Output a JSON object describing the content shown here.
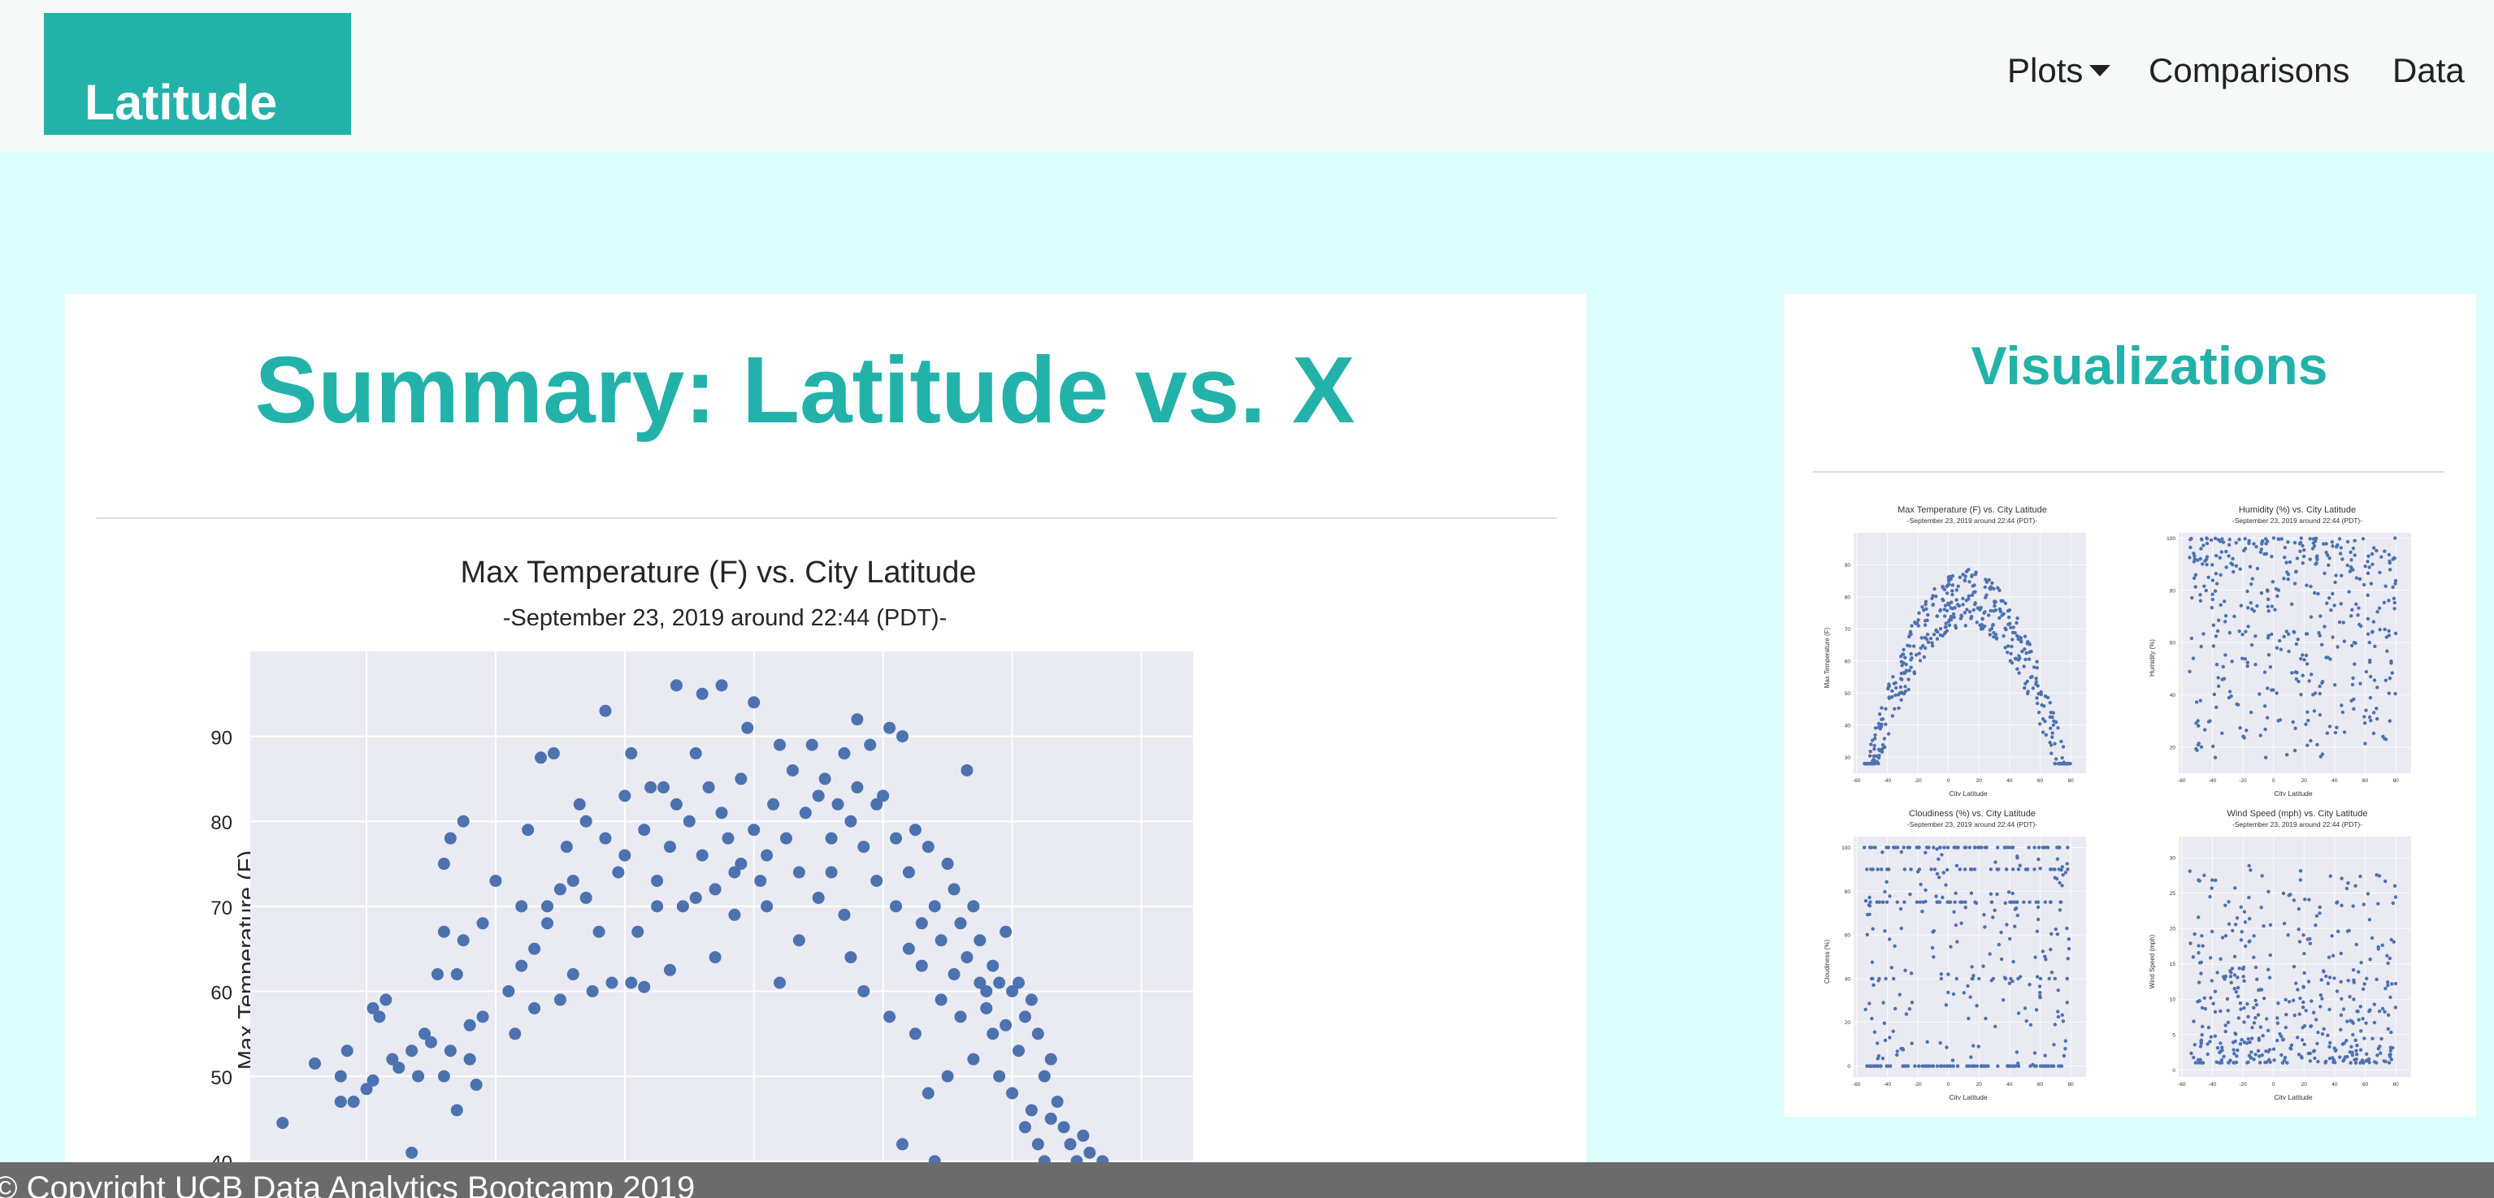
{
  "navbar": {
    "brand": "Latitude",
    "items": [
      {
        "label": "Plots",
        "has_dropdown": true
      },
      {
        "label": "Comparisons"
      },
      {
        "label": "Data"
      }
    ]
  },
  "main": {
    "title": "Summary: Latitude vs. X"
  },
  "sidebar": {
    "title": "Visualizations",
    "thumbnails": [
      {
        "title": "Max Temperature (F) vs. City Latitude",
        "subtitle": "-September 23, 2019 around 22:44 (PDT)-",
        "xlabel": "City Latitude",
        "ylabel": "Max Temperature (F)",
        "yticks": [
          30,
          40,
          50,
          60,
          70,
          80,
          90
        ],
        "xticks": [
          -60,
          -40,
          -20,
          0,
          20,
          40,
          60,
          80
        ]
      },
      {
        "title": "Humidity (%) vs. City Latitude",
        "subtitle": "-September 23, 2019 around 22:44 (PDT)-",
        "xlabel": "City Latitude",
        "ylabel": "Humidity (%)",
        "yticks": [
          20,
          40,
          60,
          80,
          100
        ],
        "xticks": [
          -60,
          -40,
          -20,
          0,
          20,
          40,
          60,
          80
        ]
      },
      {
        "title": "Cloudiness (%) vs. City Latitude",
        "subtitle": "-September 23, 2019 around 22:44 (PDT)-",
        "xlabel": "City Latitude",
        "ylabel": "Cloudiness (%)",
        "yticks": [
          0,
          20,
          40,
          60,
          80,
          100
        ],
        "xticks": [
          -60,
          -40,
          -20,
          0,
          20,
          40,
          60,
          80
        ]
      },
      {
        "title": "Wind Speed (mph) vs. City Latitude",
        "subtitle": "-September 23, 2019 around 22:44 (PDT)-",
        "xlabel": "City Latitude",
        "ylabel": "Wind Speed (mph)",
        "yticks": [
          0,
          5,
          10,
          15,
          20,
          25,
          30
        ],
        "xticks": [
          -60,
          -40,
          -20,
          0,
          20,
          40,
          60,
          80
        ]
      }
    ]
  },
  "footer": {
    "text": "© Copyright UCB Data Analytics Bootcamp 2019"
  },
  "colors": {
    "accent": "#22b2aa",
    "page_background": "#dcfefd",
    "point": "#4c72b0",
    "plot_background": "#eaeaf2",
    "footer": "#6b6b6b"
  },
  "chart_data": [
    {
      "type": "scatter",
      "title": "Max Temperature (F) vs. City Latitude",
      "subtitle": "-September 23, 2019 around 22:44 (PDT)-",
      "xlabel": "City Latitude",
      "ylabel": "Max Temperature (F)",
      "xlim": [
        -58,
        88
      ],
      "ylim": [
        35,
        100
      ],
      "visible_ylim": [
        35,
        100
      ],
      "yticks": [
        40,
        50,
        60,
        70,
        80,
        90
      ],
      "grid": true,
      "points": [
        [
          -53,
          44.5
        ],
        [
          -48,
          51.5
        ],
        [
          -45,
          38
        ],
        [
          -44,
          47
        ],
        [
          -44,
          50
        ],
        [
          -43,
          53
        ],
        [
          -42,
          47
        ],
        [
          -40,
          48.5
        ],
        [
          -39,
          49.5
        ],
        [
          -39,
          58
        ],
        [
          -38,
          57
        ],
        [
          -37,
          59
        ],
        [
          -36,
          52
        ],
        [
          -35,
          51
        ],
        [
          -33,
          41
        ],
        [
          -33,
          53
        ],
        [
          -32,
          50
        ],
        [
          -31,
          55
        ],
        [
          -30,
          54
        ],
        [
          -29,
          62
        ],
        [
          -28,
          50
        ],
        [
          -28,
          67
        ],
        [
          -28,
          75
        ],
        [
          -27,
          78
        ],
        [
          -27,
          53
        ],
        [
          -26,
          62
        ],
        [
          -26,
          46
        ],
        [
          -25,
          66
        ],
        [
          -25,
          80
        ],
        [
          -24,
          56
        ],
        [
          -24,
          52
        ],
        [
          -23,
          49
        ],
        [
          -22,
          68
        ],
        [
          -22,
          57
        ],
        [
          -20,
          73
        ],
        [
          -18,
          60
        ],
        [
          -17,
          55
        ],
        [
          -16,
          63
        ],
        [
          -16,
          70
        ],
        [
          -15,
          79
        ],
        [
          -14,
          65
        ],
        [
          -14,
          58
        ],
        [
          -13,
          87.5
        ],
        [
          -12,
          70
        ],
        [
          -12,
          68
        ],
        [
          -11,
          88
        ],
        [
          -10,
          59
        ],
        [
          -10,
          72
        ],
        [
          -9,
          77
        ],
        [
          -8,
          62
        ],
        [
          -8,
          73
        ],
        [
          -7,
          82
        ],
        [
          -6,
          71
        ],
        [
          -6,
          80
        ],
        [
          -5,
          60
        ],
        [
          -4,
          67
        ],
        [
          -3,
          93
        ],
        [
          -3,
          78
        ],
        [
          -2,
          61
        ],
        [
          -1,
          74
        ],
        [
          0,
          83
        ],
        [
          0,
          76
        ],
        [
          1,
          61
        ],
        [
          1,
          88
        ],
        [
          2,
          67
        ],
        [
          3,
          60.5
        ],
        [
          3,
          79
        ],
        [
          4,
          84
        ],
        [
          5,
          70
        ],
        [
          5,
          73
        ],
        [
          6,
          84
        ],
        [
          7,
          62.5
        ],
        [
          7,
          77
        ],
        [
          8,
          96
        ],
        [
          8,
          82
        ],
        [
          9,
          70
        ],
        [
          10,
          80
        ],
        [
          11,
          71
        ],
        [
          11,
          88
        ],
        [
          12,
          95
        ],
        [
          12,
          76
        ],
        [
          13,
          84
        ],
        [
          14,
          72
        ],
        [
          14,
          64
        ],
        [
          15,
          96
        ],
        [
          15,
          81
        ],
        [
          16,
          78
        ],
        [
          17,
          74
        ],
        [
          17,
          69
        ],
        [
          18,
          85
        ],
        [
          18,
          75
        ],
        [
          19,
          91
        ],
        [
          20,
          79
        ],
        [
          20,
          94
        ],
        [
          21,
          73
        ],
        [
          22,
          76
        ],
        [
          22,
          70
        ],
        [
          23,
          82
        ],
        [
          24,
          61
        ],
        [
          24,
          89
        ],
        [
          25,
          78
        ],
        [
          26,
          86
        ],
        [
          27,
          74
        ],
        [
          27,
          66
        ],
        [
          28,
          81
        ],
        [
          29,
          89
        ],
        [
          30,
          83
        ],
        [
          30,
          71
        ],
        [
          31,
          85
        ],
        [
          32,
          78
        ],
        [
          32,
          74
        ],
        [
          33,
          82
        ],
        [
          34,
          88
        ],
        [
          34,
          69
        ],
        [
          35,
          64
        ],
        [
          35,
          80
        ],
        [
          36,
          92
        ],
        [
          36,
          84
        ],
        [
          37,
          60
        ],
        [
          37,
          77
        ],
        [
          38,
          89
        ],
        [
          39,
          82
        ],
        [
          39,
          73
        ],
        [
          40,
          83
        ],
        [
          41,
          91
        ],
        [
          41,
          57
        ],
        [
          42,
          78
        ],
        [
          42,
          70
        ],
        [
          43,
          90
        ],
        [
          43,
          42
        ],
        [
          44,
          74
        ],
        [
          44,
          65
        ],
        [
          45,
          79
        ],
        [
          45,
          55
        ],
        [
          46,
          68
        ],
        [
          46,
          63
        ],
        [
          47,
          77
        ],
        [
          47,
          48
        ],
        [
          48,
          70
        ],
        [
          48,
          40
        ],
        [
          49,
          66
        ],
        [
          49,
          59
        ],
        [
          50,
          75
        ],
        [
          50,
          50
        ],
        [
          51,
          72
        ],
        [
          51,
          62
        ],
        [
          52,
          68
        ],
        [
          52,
          57
        ],
        [
          53,
          86
        ],
        [
          53,
          64
        ],
        [
          54,
          70
        ],
        [
          54,
          52
        ],
        [
          55,
          61
        ],
        [
          55,
          66
        ],
        [
          56,
          60
        ],
        [
          56,
          58
        ],
        [
          57,
          63
        ],
        [
          57,
          55
        ],
        [
          58,
          61
        ],
        [
          58,
          50
        ],
        [
          59,
          67
        ],
        [
          59,
          56
        ],
        [
          60,
          60
        ],
        [
          60,
          48
        ],
        [
          61,
          61
        ],
        [
          61,
          53
        ],
        [
          62,
          57
        ],
        [
          62,
          44
        ],
        [
          63,
          59
        ],
        [
          63,
          46
        ],
        [
          64,
          55
        ],
        [
          64,
          42
        ],
        [
          65,
          50
        ],
        [
          65,
          40
        ],
        [
          66,
          52
        ],
        [
          66,
          45
        ],
        [
          67,
          47
        ],
        [
          67,
          38
        ],
        [
          68,
          44
        ],
        [
          68,
          36
        ],
        [
          69,
          42
        ],
        [
          69,
          39
        ],
        [
          70,
          40
        ],
        [
          70,
          37
        ],
        [
          71,
          43
        ],
        [
          71,
          36
        ],
        [
          72,
          41
        ],
        [
          72,
          35.5
        ],
        [
          73,
          38
        ],
        [
          74,
          40
        ],
        [
          75,
          37
        ],
        [
          76,
          36
        ],
        [
          78,
          35.5
        ],
        [
          81,
          35.5
        ]
      ]
    }
  ]
}
